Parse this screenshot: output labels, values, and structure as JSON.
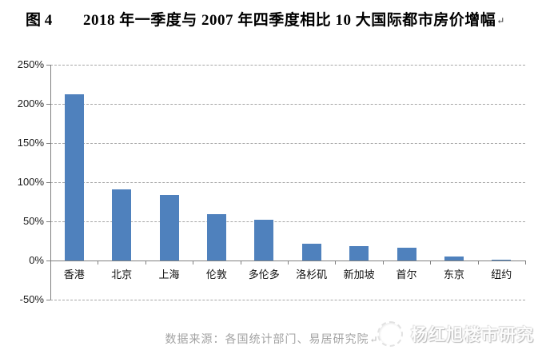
{
  "title": {
    "figure_label": "图 4",
    "text": "2018 年一季度与 2007 年四季度相比 10 大国际都市房价增幅",
    "return_mark": "↵"
  },
  "chart_data": {
    "type": "bar",
    "title": "2018 年一季度与 2007 年四季度相比 10 大国际都市房价增幅",
    "categories": [
      "香港",
      "北京",
      "上海",
      "伦敦",
      "多伦多",
      "洛杉矶",
      "新加坡",
      "首尔",
      "东京",
      "纽约"
    ],
    "values": [
      212,
      91,
      84,
      59,
      52,
      21,
      18,
      16,
      5,
      1
    ],
    "unit": "%",
    "xlabel": "",
    "ylabel": "",
    "ylim": [
      -50,
      250
    ],
    "ytick_values": [
      250,
      200,
      150,
      100,
      50,
      0,
      -50
    ],
    "ytick_labels": [
      "250%",
      "200%",
      "150%",
      "100%",
      "50%",
      "0%",
      "-50%"
    ],
    "grid": true,
    "legend": false,
    "bar_color": "#4f81bd",
    "gridline_color": "#a6a6a6",
    "axis_color": "#808080"
  },
  "footer": {
    "source_text": "数据来源：各国统计部门、易居研究院",
    "return_mark": "↵"
  },
  "watermark": {
    "icon": "logo-circle-icon",
    "text": "杨红旭楼市研究"
  }
}
